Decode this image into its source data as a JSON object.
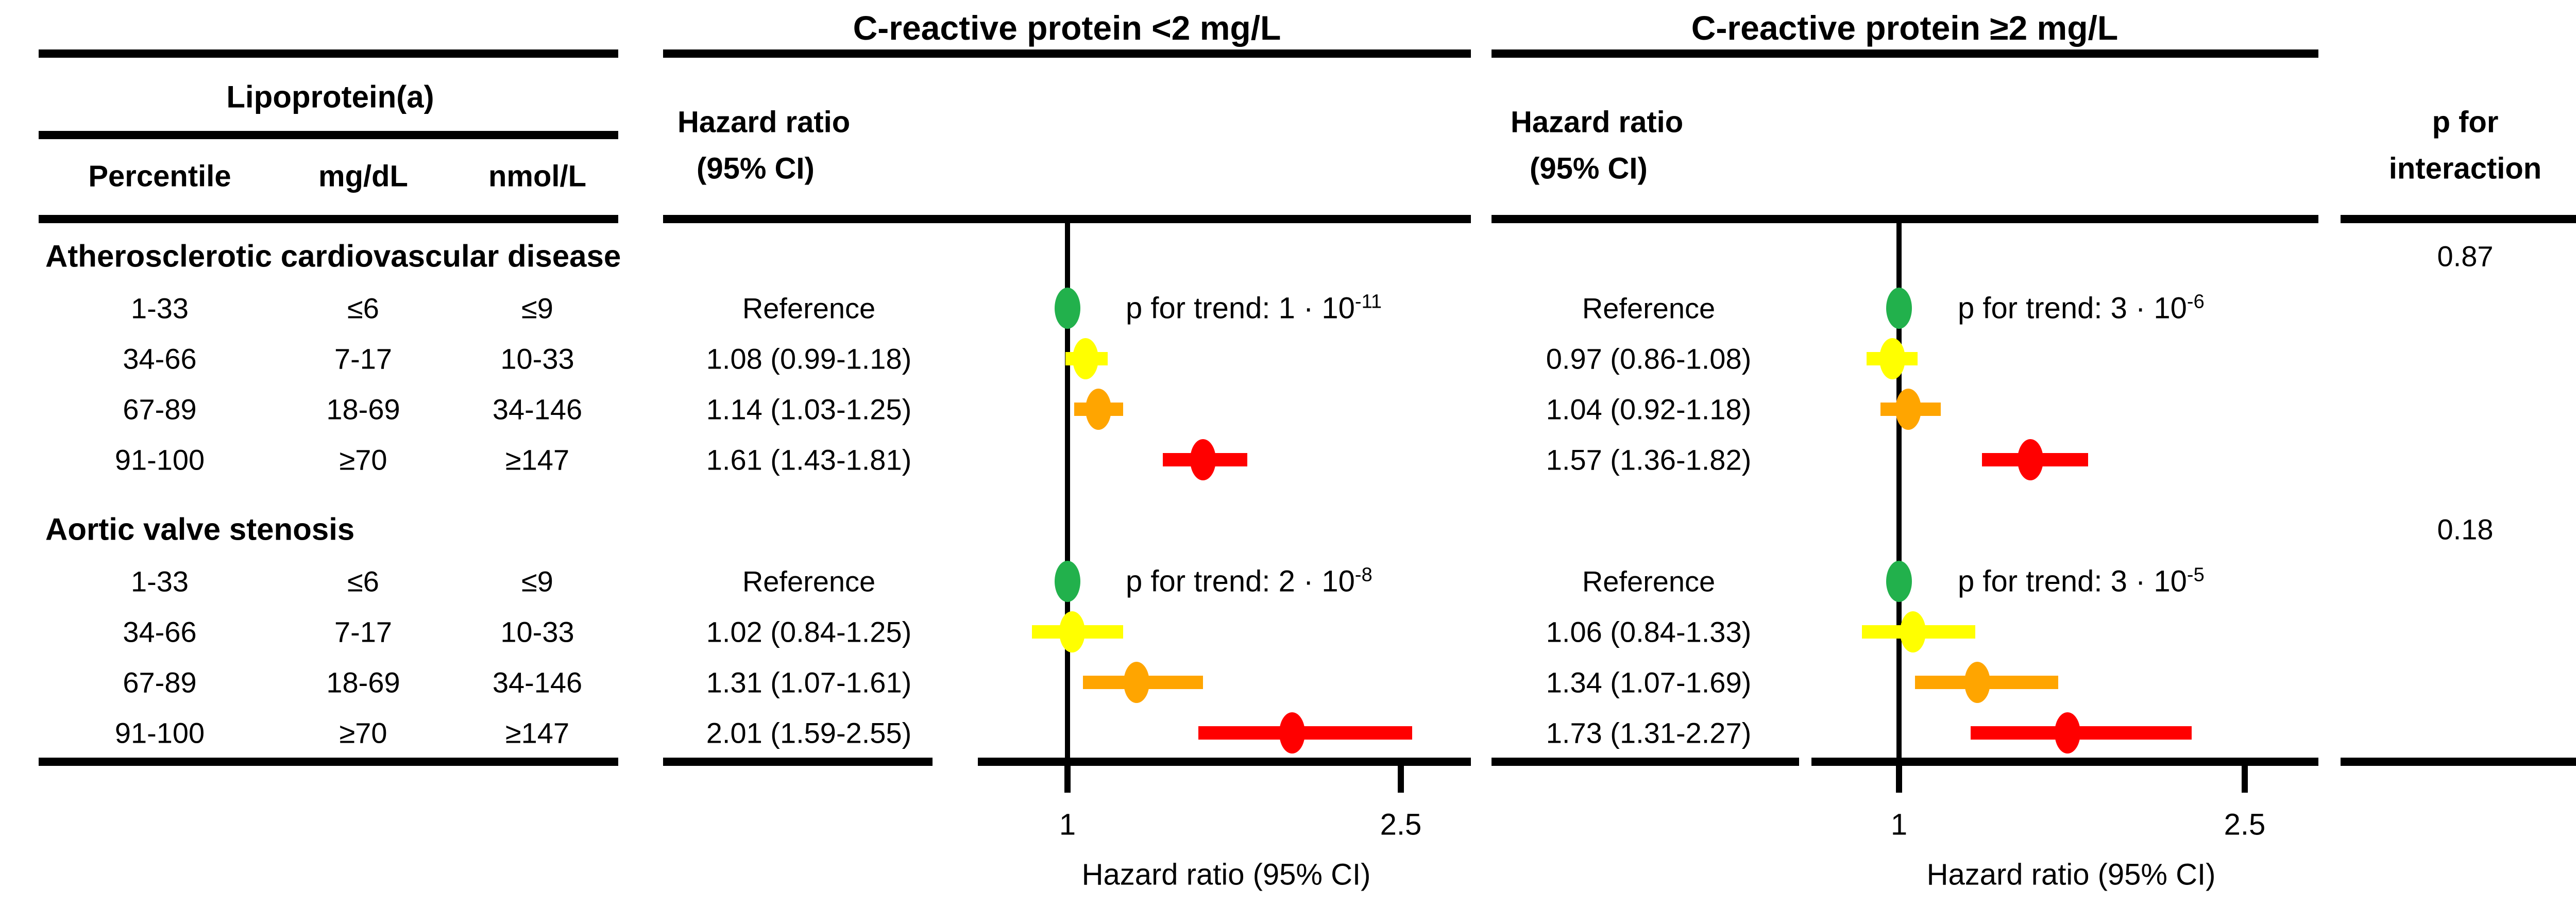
{
  "headers": {
    "left_panel_title": "C-reactive protein <2 mg/L",
    "right_panel_title": "C-reactive protein ≥2 mg/L",
    "hr_header_line1": "Hazard ratio",
    "hr_header_line2": "(95% CI)",
    "p_interaction_line1": "p for",
    "p_interaction_line2": "interaction"
  },
  "lipoprotein": {
    "group_header": "Lipoprotein(a)",
    "col_headers": [
      "Percentile",
      "mg/dL",
      "nmol/L"
    ]
  },
  "axis": {
    "tick_labels": [
      "1",
      "2.5"
    ],
    "tick_values": [
      1,
      2.5
    ],
    "label": "Hazard ratio (95% CI)",
    "xlim": [
      0.6,
      2.85
    ]
  },
  "colors": {
    "reference": "#22b14c",
    "tertile2": "#ffff00",
    "tertile3": "#ffa500",
    "top_group": "#ff0000",
    "line": "#000000",
    "background": "#ffffff"
  },
  "sections": [
    {
      "title": "Atherosclerotic cardiovascular disease",
      "p_interaction": "0.87",
      "p_trend": {
        "left_base": "p for trend: 1 · 10",
        "left_sup": "-11",
        "right_base": "p for trend: 3 · 10",
        "right_sup": "-6"
      },
      "rows": [
        {
          "percentile": "1-33",
          "mg_dl": "≤6",
          "nmol_l": "≤9",
          "color": "#22b14c",
          "is_reference": true,
          "left": {
            "label": "Reference",
            "hr": 1.0
          },
          "right": {
            "label": "Reference",
            "hr": 1.0
          }
        },
        {
          "percentile": "34-66",
          "mg_dl": "7-17",
          "nmol_l": "10-33",
          "color": "#ffff00",
          "is_reference": false,
          "left": {
            "label": "1.08 (0.99-1.18)",
            "hr": 1.08,
            "lo": 0.99,
            "hi": 1.18
          },
          "right": {
            "label": "0.97 (0.86-1.08)",
            "hr": 0.97,
            "lo": 0.86,
            "hi": 1.08
          }
        },
        {
          "percentile": "67-89",
          "mg_dl": "18-69",
          "nmol_l": "34-146",
          "color": "#ffa500",
          "is_reference": false,
          "left": {
            "label": "1.14 (1.03-1.25)",
            "hr": 1.14,
            "lo": 1.03,
            "hi": 1.25
          },
          "right": {
            "label": "1.04 (0.92-1.18)",
            "hr": 1.04,
            "lo": 0.92,
            "hi": 1.18
          }
        },
        {
          "percentile": "91-100",
          "mg_dl": "≥70",
          "nmol_l": "≥147",
          "color": "#ff0000",
          "is_reference": false,
          "left": {
            "label": "1.61 (1.43-1.81)",
            "hr": 1.61,
            "lo": 1.43,
            "hi": 1.81
          },
          "right": {
            "label": "1.57 (1.36-1.82)",
            "hr": 1.57,
            "lo": 1.36,
            "hi": 1.82
          }
        }
      ]
    },
    {
      "title": "Aortic valve stenosis",
      "p_interaction": "0.18",
      "p_trend": {
        "left_base": "p for trend: 2 · 10",
        "left_sup": "-8",
        "right_base": "p for trend: 3 · 10",
        "right_sup": "-5"
      },
      "rows": [
        {
          "percentile": "1-33",
          "mg_dl": "≤6",
          "nmol_l": "≤9",
          "color": "#22b14c",
          "is_reference": true,
          "left": {
            "label": "Reference",
            "hr": 1.0
          },
          "right": {
            "label": "Reference",
            "hr": 1.0
          }
        },
        {
          "percentile": "34-66",
          "mg_dl": "7-17",
          "nmol_l": "10-33",
          "color": "#ffff00",
          "is_reference": false,
          "left": {
            "label": "1.02 (0.84-1.25)",
            "hr": 1.02,
            "lo": 0.84,
            "hi": 1.25
          },
          "right": {
            "label": "1.06 (0.84-1.33)",
            "hr": 1.06,
            "lo": 0.84,
            "hi": 1.33
          }
        },
        {
          "percentile": "67-89",
          "mg_dl": "18-69",
          "nmol_l": "34-146",
          "color": "#ffa500",
          "is_reference": false,
          "left": {
            "label": "1.31 (1.07-1.61)",
            "hr": 1.31,
            "lo": 1.07,
            "hi": 1.61
          },
          "right": {
            "label": "1.34 (1.07-1.69)",
            "hr": 1.34,
            "lo": 1.07,
            "hi": 1.69
          }
        },
        {
          "percentile": "91-100",
          "mg_dl": "≥70",
          "nmol_l": "≥147",
          "color": "#ff0000",
          "is_reference": false,
          "left": {
            "label": "2.01 (1.59-2.55)",
            "hr": 2.01,
            "lo": 1.59,
            "hi": 2.55
          },
          "right": {
            "label": "1.73 (1.31-2.27)",
            "hr": 1.73,
            "lo": 1.31,
            "hi": 2.27
          }
        }
      ]
    }
  ],
  "chart_data": [
    {
      "type": "scatter",
      "subtype": "forest-plot",
      "title": "C-reactive protein <2 mg/L",
      "xlabel": "Hazard ratio (95% CI)",
      "xlim": [
        0.6,
        2.85
      ],
      "xticks": [
        1,
        2.5
      ],
      "categories": [
        "Lp(a) percentile 1-33",
        "Lp(a) percentile 34-66",
        "Lp(a) percentile 67-89",
        "Lp(a) percentile 91-100"
      ],
      "series": [
        {
          "name": "Atherosclerotic cardiovascular disease",
          "hr": [
            1.0,
            1.08,
            1.14,
            1.61
          ],
          "ci_low": [
            null,
            0.99,
            1.03,
            1.43
          ],
          "ci_high": [
            null,
            1.18,
            1.25,
            1.81
          ],
          "p_for_trend": "1 · 10^-11",
          "p_for_interaction": "0.87"
        },
        {
          "name": "Aortic valve stenosis",
          "hr": [
            1.0,
            1.02,
            1.31,
            2.01
          ],
          "ci_low": [
            null,
            0.84,
            1.07,
            1.59
          ],
          "ci_high": [
            null,
            1.25,
            1.61,
            2.55
          ],
          "p_for_trend": "2 · 10^-8",
          "p_for_interaction": "0.18"
        }
      ],
      "point_colors": [
        "#22b14c",
        "#ffff00",
        "#ffa500",
        "#ff0000"
      ],
      "grid": false,
      "reference_line_at": 1
    },
    {
      "type": "scatter",
      "subtype": "forest-plot",
      "title": "C-reactive protein ≥2 mg/L",
      "xlabel": "Hazard ratio (95% CI)",
      "xlim": [
        0.6,
        2.85
      ],
      "xticks": [
        1,
        2.5
      ],
      "categories": [
        "Lp(a) percentile 1-33",
        "Lp(a) percentile 34-66",
        "Lp(a) percentile 67-89",
        "Lp(a) percentile 91-100"
      ],
      "series": [
        {
          "name": "Atherosclerotic cardiovascular disease",
          "hr": [
            1.0,
            0.97,
            1.04,
            1.57
          ],
          "ci_low": [
            null,
            0.86,
            0.92,
            1.36
          ],
          "ci_high": [
            null,
            1.08,
            1.18,
            1.82
          ],
          "p_for_trend": "3 · 10^-6",
          "p_for_interaction": "0.87"
        },
        {
          "name": "Aortic valve stenosis",
          "hr": [
            1.0,
            1.06,
            1.34,
            1.73
          ],
          "ci_low": [
            null,
            0.84,
            1.07,
            1.31
          ],
          "ci_high": [
            null,
            1.33,
            1.69,
            2.27
          ],
          "p_for_trend": "3 · 10^-5",
          "p_for_interaction": "0.18"
        }
      ],
      "point_colors": [
        "#22b14c",
        "#ffff00",
        "#ffa500",
        "#ff0000"
      ],
      "grid": false,
      "reference_line_at": 1
    }
  ]
}
